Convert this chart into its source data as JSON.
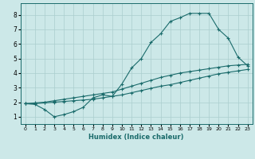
{
  "xlabel": "Humidex (Indice chaleur)",
  "ylabel": "",
  "background_color": "#cce8e8",
  "grid_color": "#aacece",
  "line_color": "#1a6b6b",
  "xlim": [
    -0.5,
    23.5
  ],
  "ylim": [
    0.5,
    8.8
  ],
  "xticks": [
    0,
    1,
    2,
    3,
    4,
    5,
    6,
    7,
    8,
    9,
    10,
    11,
    12,
    13,
    14,
    15,
    16,
    17,
    18,
    19,
    20,
    21,
    22,
    23
  ],
  "yticks": [
    1,
    2,
    3,
    4,
    5,
    6,
    7,
    8
  ],
  "curve1_x": [
    0,
    1,
    2,
    3,
    4,
    5,
    6,
    7,
    8,
    9,
    10,
    11,
    12,
    13,
    14,
    15,
    16,
    17,
    18,
    19,
    20,
    21,
    22,
    23
  ],
  "curve1_y": [
    1.9,
    1.85,
    1.5,
    1.0,
    1.15,
    1.35,
    1.65,
    2.3,
    2.5,
    2.4,
    3.25,
    4.35,
    5.0,
    6.1,
    6.7,
    7.55,
    7.8,
    8.1,
    8.1,
    8.1,
    7.0,
    6.4,
    5.1,
    4.5
  ],
  "curve2_x": [
    0,
    1,
    2,
    3,
    4,
    5,
    6,
    7,
    8,
    9,
    10,
    11,
    12,
    13,
    14,
    15,
    16,
    17,
    18,
    19,
    20,
    21,
    22,
    23
  ],
  "curve2_y": [
    1.9,
    1.95,
    2.0,
    2.1,
    2.2,
    2.3,
    2.4,
    2.5,
    2.6,
    2.7,
    2.9,
    3.1,
    3.3,
    3.5,
    3.7,
    3.85,
    4.0,
    4.1,
    4.2,
    4.3,
    4.4,
    4.5,
    4.55,
    4.6
  ],
  "curve3_x": [
    0,
    1,
    2,
    3,
    4,
    5,
    6,
    7,
    8,
    9,
    10,
    11,
    12,
    13,
    14,
    15,
    16,
    17,
    18,
    19,
    20,
    21,
    22,
    23
  ],
  "curve3_y": [
    1.9,
    1.9,
    1.95,
    2.0,
    2.05,
    2.1,
    2.15,
    2.2,
    2.3,
    2.4,
    2.5,
    2.65,
    2.8,
    2.95,
    3.1,
    3.2,
    3.35,
    3.5,
    3.65,
    3.8,
    3.95,
    4.05,
    4.15,
    4.25
  ]
}
